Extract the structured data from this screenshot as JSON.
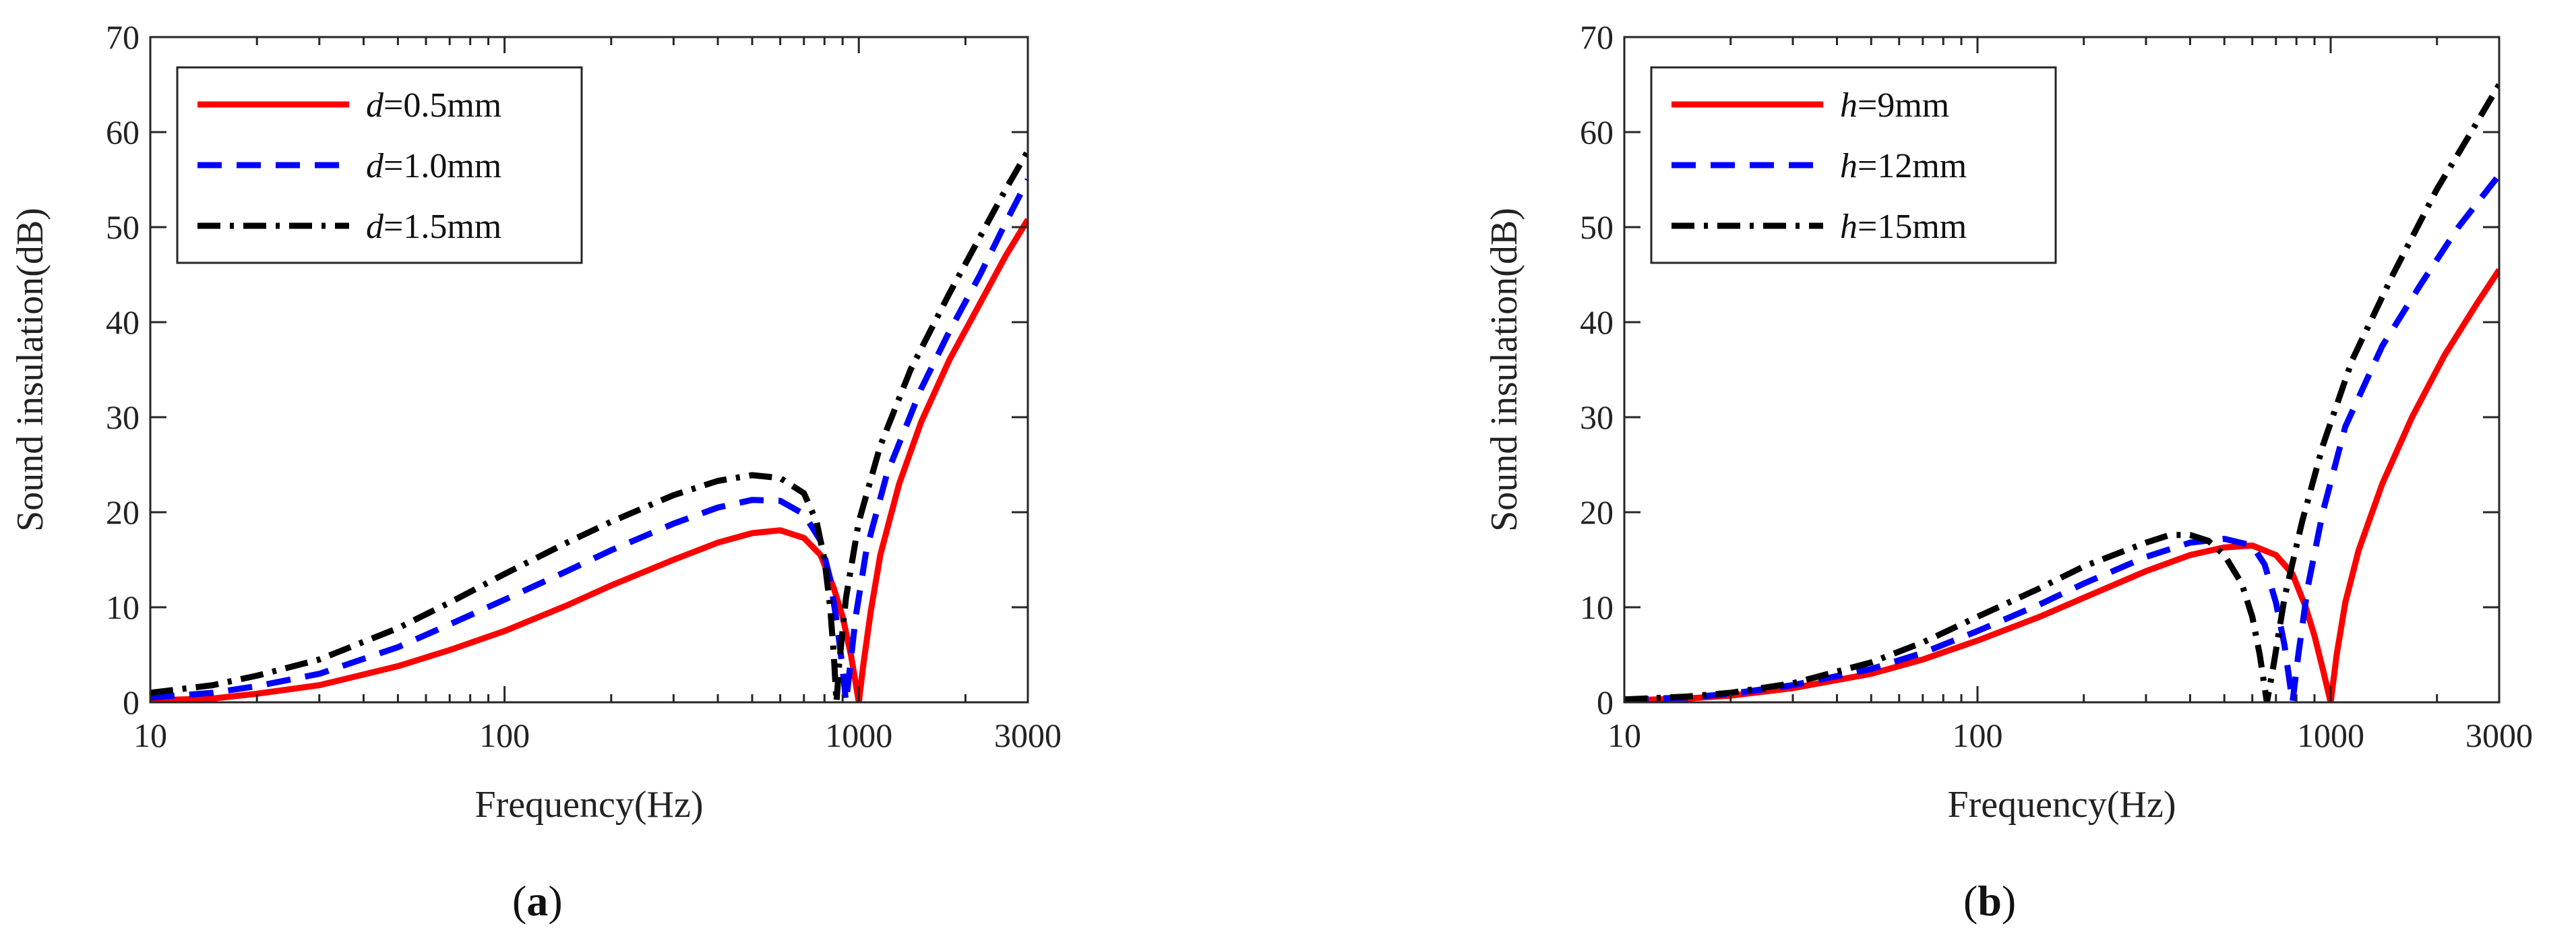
{
  "chart_data": [
    {
      "type": "line",
      "panel_label": "a",
      "xlabel": "Frequency(Hz)",
      "ylabel": "Sound insulation(dB)",
      "xscale": "log",
      "xlim": [
        10,
        3000
      ],
      "ylim": [
        0,
        70
      ],
      "xticks": [
        10,
        100,
        1000,
        3000
      ],
      "xtick_labels": [
        "10",
        "100",
        "1000",
        "3000"
      ],
      "yticks": [
        0,
        10,
        20,
        30,
        40,
        50,
        60,
        70
      ],
      "ytick_labels": [
        "0",
        "10",
        "20",
        "30",
        "40",
        "50",
        "60",
        "70"
      ],
      "legend_position": "top-left",
      "series": [
        {
          "name": "d=0.5mm",
          "var": "d",
          "value_label": "=0.5mm",
          "color": "#ff0000",
          "style": "solid",
          "points": [
            [
              10,
              0.2
            ],
            [
              15,
              0.4
            ],
            [
              20,
              0.9
            ],
            [
              30,
              1.8
            ],
            [
              50,
              3.8
            ],
            [
              70,
              5.5
            ],
            [
              100,
              7.5
            ],
            [
              150,
              10.2
            ],
            [
              200,
              12.3
            ],
            [
              300,
              15.0
            ],
            [
              400,
              16.8
            ],
            [
              500,
              17.8
            ],
            [
              600,
              18.1
            ],
            [
              700,
              17.3
            ],
            [
              780,
              15.5
            ],
            [
              850,
              12.0
            ],
            [
              900,
              9.0
            ],
            [
              950,
              5.0
            ],
            [
              980,
              2.0
            ],
            [
              1000,
              0.0
            ],
            [
              1030,
              4.0
            ],
            [
              1080,
              9.5
            ],
            [
              1150,
              15.5
            ],
            [
              1300,
              23.0
            ],
            [
              1500,
              29.5
            ],
            [
              1800,
              36.0
            ],
            [
              2200,
              42.0
            ],
            [
              2600,
              47.0
            ],
            [
              3000,
              50.8
            ]
          ]
        },
        {
          "name": "d=1.0mm",
          "var": "d",
          "value_label": "=1.0mm",
          "color": "#0000ff",
          "style": "dashed",
          "points": [
            [
              10,
              0.5
            ],
            [
              15,
              1.0
            ],
            [
              20,
              1.7
            ],
            [
              30,
              3.0
            ],
            [
              50,
              5.8
            ],
            [
              70,
              8.2
            ],
            [
              100,
              10.8
            ],
            [
              150,
              13.8
            ],
            [
              200,
              16.0
            ],
            [
              300,
              18.8
            ],
            [
              400,
              20.5
            ],
            [
              500,
              21.3
            ],
            [
              600,
              21.2
            ],
            [
              700,
              19.8
            ],
            [
              780,
              17.0
            ],
            [
              830,
              13.0
            ],
            [
              870,
              8.0
            ],
            [
              900,
              3.5
            ],
            [
              920,
              0.0
            ],
            [
              940,
              3.0
            ],
            [
              980,
              9.0
            ],
            [
              1050,
              16.0
            ],
            [
              1200,
              24.0
            ],
            [
              1500,
              33.0
            ],
            [
              1800,
              39.0
            ],
            [
              2200,
              45.0
            ],
            [
              2600,
              50.5
            ],
            [
              3000,
              55.0
            ]
          ]
        },
        {
          "name": "d=1.5mm",
          "var": "d",
          "value_label": "=1.5mm",
          "color": "#000000",
          "style": "dashdot",
          "points": [
            [
              10,
              1.0
            ],
            [
              15,
              1.8
            ],
            [
              20,
              2.8
            ],
            [
              30,
              4.5
            ],
            [
              50,
              7.8
            ],
            [
              70,
              10.5
            ],
            [
              100,
              13.5
            ],
            [
              150,
              16.8
            ],
            [
              200,
              19.0
            ],
            [
              300,
              21.8
            ],
            [
              400,
              23.3
            ],
            [
              500,
              23.9
            ],
            [
              600,
              23.6
            ],
            [
              700,
              22.0
            ],
            [
              760,
              19.0
            ],
            [
              800,
              15.0
            ],
            [
              830,
              10.0
            ],
            [
              850,
              5.0
            ],
            [
              865,
              0.0
            ],
            [
              880,
              4.0
            ],
            [
              920,
              11.0
            ],
            [
              1000,
              19.0
            ],
            [
              1150,
              27.0
            ],
            [
              1400,
              35.0
            ],
            [
              1800,
              43.0
            ],
            [
              2200,
              49.0
            ],
            [
              2600,
              54.0
            ],
            [
              3000,
              58.0
            ]
          ]
        }
      ]
    },
    {
      "type": "line",
      "panel_label": "b",
      "xlabel": "Frequency(Hz)",
      "ylabel": "Sound insulation(dB)",
      "xscale": "log",
      "xlim": [
        10,
        3000
      ],
      "ylim": [
        0,
        70
      ],
      "xticks": [
        10,
        100,
        1000,
        3000
      ],
      "xtick_labels": [
        "10",
        "100",
        "1000",
        "3000"
      ],
      "yticks": [
        0,
        10,
        20,
        30,
        40,
        50,
        60,
        70
      ],
      "ytick_labels": [
        "0",
        "10",
        "20",
        "30",
        "40",
        "50",
        "60",
        "70"
      ],
      "legend_position": "top-left",
      "series": [
        {
          "name": "h=9mm",
          "var": "h",
          "value_label": "=9mm",
          "color": "#ff0000",
          "style": "solid",
          "points": [
            [
              10,
              0.2
            ],
            [
              15,
              0.4
            ],
            [
              20,
              0.7
            ],
            [
              30,
              1.5
            ],
            [
              50,
              3.0
            ],
            [
              70,
              4.5
            ],
            [
              100,
              6.5
            ],
            [
              150,
              9.0
            ],
            [
              200,
              11.0
            ],
            [
              300,
              13.8
            ],
            [
              400,
              15.5
            ],
            [
              500,
              16.3
            ],
            [
              600,
              16.5
            ],
            [
              700,
              15.5
            ],
            [
              780,
              13.5
            ],
            [
              850,
              10.0
            ],
            [
              900,
              7.0
            ],
            [
              950,
              3.5
            ],
            [
              1000,
              0.0
            ],
            [
              1040,
              5.0
            ],
            [
              1100,
              10.5
            ],
            [
              1200,
              16.0
            ],
            [
              1400,
              23.0
            ],
            [
              1700,
              30.0
            ],
            [
              2100,
              36.5
            ],
            [
              2600,
              42.0
            ],
            [
              3000,
              45.5
            ]
          ]
        },
        {
          "name": "h=12mm",
          "var": "h",
          "value_label": "=12mm",
          "color": "#0000ff",
          "style": "dashed",
          "points": [
            [
              10,
              0.3
            ],
            [
              15,
              0.5
            ],
            [
              20,
              0.9
            ],
            [
              30,
              1.8
            ],
            [
              50,
              3.5
            ],
            [
              70,
              5.2
            ],
            [
              100,
              7.5
            ],
            [
              150,
              10.3
            ],
            [
              200,
              12.5
            ],
            [
              300,
              15.3
            ],
            [
              400,
              16.8
            ],
            [
              500,
              17.2
            ],
            [
              600,
              16.5
            ],
            [
              650,
              14.5
            ],
            [
              700,
              10.5
            ],
            [
              740,
              6.0
            ],
            [
              780,
              0.0
            ],
            [
              810,
              5.0
            ],
            [
              860,
              12.0
            ],
            [
              950,
              20.0
            ],
            [
              1100,
              29.0
            ],
            [
              1400,
              37.5
            ],
            [
              1800,
              44.0
            ],
            [
              2300,
              50.0
            ],
            [
              3000,
              55.5
            ]
          ]
        },
        {
          "name": "h=15mm",
          "var": "h",
          "value_label": "=15mm",
          "color": "#000000",
          "style": "dashdot",
          "points": [
            [
              10,
              0.3
            ],
            [
              15,
              0.6
            ],
            [
              20,
              1.0
            ],
            [
              30,
              2.0
            ],
            [
              50,
              4.2
            ],
            [
              70,
              6.3
            ],
            [
              100,
              9.0
            ],
            [
              150,
              12.0
            ],
            [
              200,
              14.3
            ],
            [
              300,
              16.8
            ],
            [
              350,
              17.6
            ],
            [
              400,
              17.6
            ],
            [
              450,
              17.0
            ],
            [
              500,
              15.5
            ],
            [
              560,
              12.5
            ],
            [
              600,
              9.0
            ],
            [
              630,
              5.0
            ],
            [
              660,
              0.0
            ],
            [
              690,
              4.0
            ],
            [
              740,
              11.0
            ],
            [
              830,
              19.0
            ],
            [
              950,
              27.0
            ],
            [
              1150,
              36.0
            ],
            [
              1500,
              45.0
            ],
            [
              2000,
              54.0
            ],
            [
              2500,
              60.0
            ],
            [
              3000,
              65.0
            ]
          ]
        }
      ]
    }
  ]
}
